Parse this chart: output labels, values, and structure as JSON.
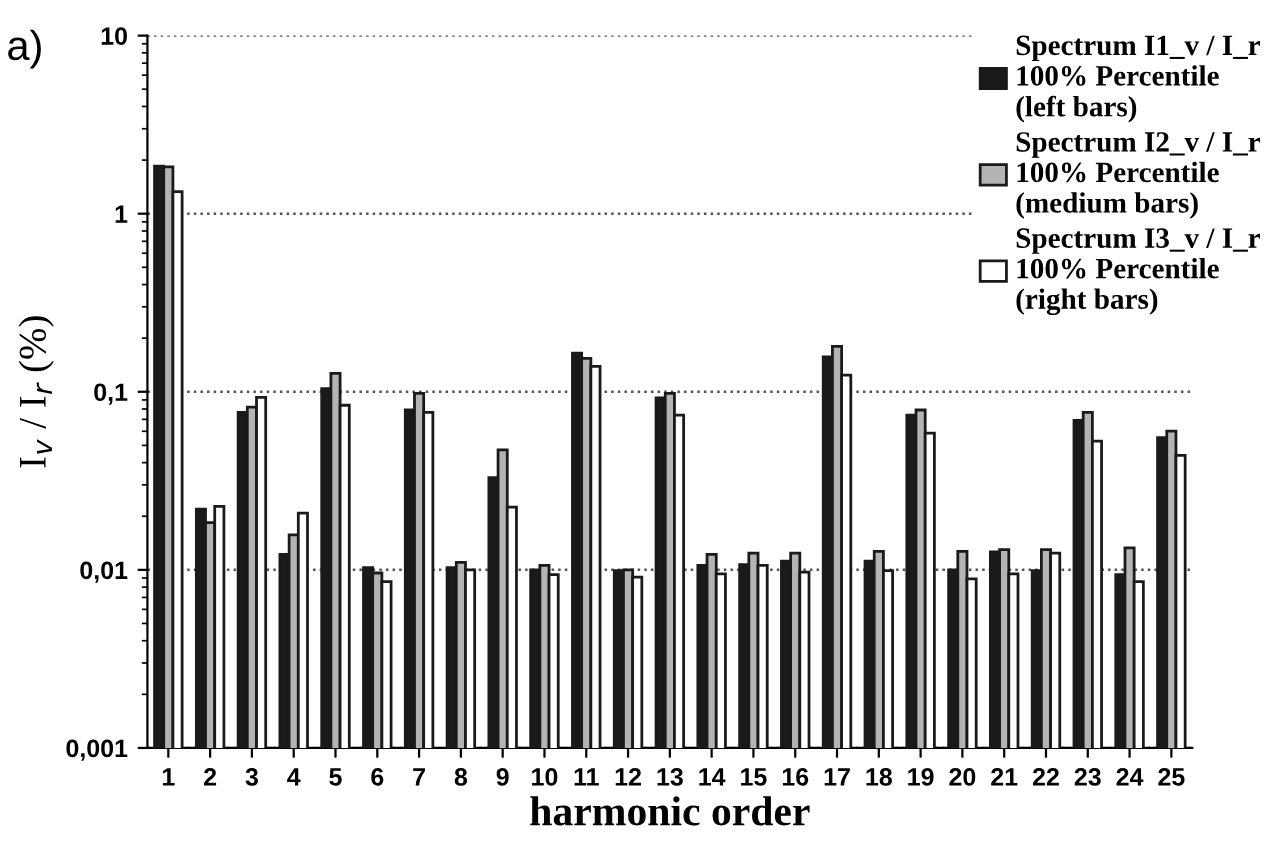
{
  "chart_data": {
    "type": "bar",
    "xlabel": "harmonic order",
    "ylabel": "I$_{v}$ / I$_{r}$ (%)",
    "annotations": [
      "a)"
    ],
    "categories": [
      "1",
      "2",
      "3",
      "4",
      "5",
      "6",
      "7",
      "8",
      "9",
      "10",
      "11",
      "12",
      "13",
      "14",
      "15",
      "16",
      "17",
      "18",
      "19",
      "20",
      "21",
      "22",
      "23",
      "24",
      "25"
    ],
    "series": [
      {
        "name": "Spectrum I1_v / I_r\n100% Percentile\n(left bars)",
        "color": "#1a1a1a",
        "values": [
          1.85,
          0.0219,
          0.0766,
          0.0122,
          0.104,
          0.0103,
          0.079,
          0.0103,
          0.0329,
          0.01,
          0.165,
          0.0099,
          0.0925,
          0.0106,
          0.0107,
          0.0112,
          0.157,
          0.0112,
          0.074,
          0.01,
          0.0126,
          0.0099,
          0.069,
          0.0094,
          0.0552
        ]
      },
      {
        "name": "Spectrum I2_v / I_r\n100% Percentile\n(medium bars)",
        "color": "#b4b4b4",
        "values": [
          1.83,
          0.0184,
          0.082,
          0.0157,
          0.127,
          0.0096,
          0.098,
          0.011,
          0.0472,
          0.0106,
          0.154,
          0.01,
          0.098,
          0.0122,
          0.0124,
          0.0124,
          0.18,
          0.0127,
          0.079,
          0.0127,
          0.013,
          0.013,
          0.0766,
          0.0133,
          0.0601
        ]
      },
      {
        "name": "Spectrum I3_v / I_r\n100% Percentile\n(right bars)",
        "color": "#ffffff",
        "values": [
          1.33,
          0.0227,
          0.093,
          0.0208,
          0.084,
          0.0086,
          0.0766,
          0.01,
          0.0225,
          0.0094,
          0.139,
          0.0091,
          0.074,
          0.0095,
          0.0106,
          0.0097,
          0.124,
          0.0099,
          0.0586,
          0.0089,
          0.0095,
          0.0124,
          0.0528,
          0.0086,
          0.044
        ]
      }
    ],
    "log": "y",
    "ylim": [
      0.001,
      10
    ],
    "yticks": [
      {
        "value": 0.001,
        "label": "0,001"
      },
      {
        "value": 0.01,
        "label": "0,01"
      },
      {
        "value": 0.1,
        "label": "0,1"
      },
      {
        "value": 1,
        "label": "1"
      },
      {
        "value": 10,
        "label": "10"
      }
    ],
    "grid": "y",
    "legend": "top right"
  }
}
